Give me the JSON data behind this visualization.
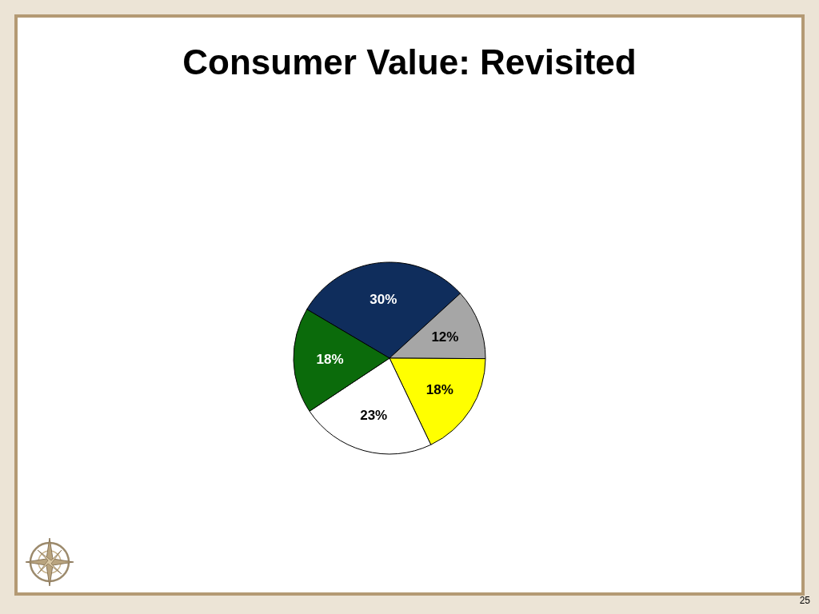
{
  "chart_data": {
    "type": "pie",
    "title": "Consumer Value: Revisited",
    "categories": [
      null,
      null,
      null,
      null,
      null
    ],
    "values": [
      30,
      12,
      18,
      23,
      18
    ],
    "colors": [
      "#0f2d5c",
      "#a6a6a6",
      "#ffff00",
      "#ffffff",
      "#0b6b0b"
    ],
    "value_labels": [
      "30%",
      "12%",
      "18%",
      "23%",
      "18%"
    ],
    "annotations": [
      "25"
    ]
  }
}
